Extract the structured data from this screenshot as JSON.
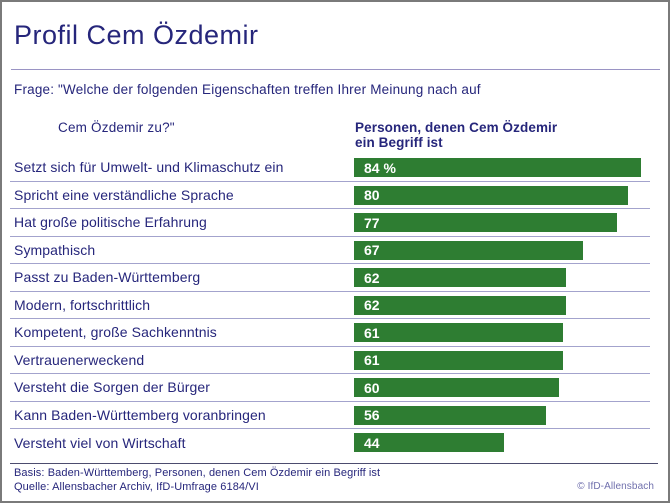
{
  "page": {
    "title": "Profil Cem Özdemir"
  },
  "question": {
    "prefix": "Frage:",
    "line1": "\"Welche der folgenden Eigenschaften treffen Ihrer Meinung nach auf",
    "line2": "Cem Özdemir zu?\""
  },
  "chart_data": {
    "type": "bar",
    "orientation": "horizontal",
    "title": "Profil Cem Özdemir",
    "column_header": "Personen, denen Cem Özdemir ein Begriff ist",
    "column_header_lines": [
      "Personen, denen Cem Özdemir",
      "ein Begriff ist"
    ],
    "categories": [
      "Setzt sich für Umwelt- und Klimaschutz ein",
      "Spricht eine verständliche Sprache",
      "Hat große politische Erfahrung",
      "Sympathisch",
      "Passt zu Baden-Württemberg",
      "Modern, fortschrittlich",
      "Kompetent, große Sachkenntnis",
      "Vertrauenerweckend",
      "Versteht die Sorgen der Bürger",
      "Kann Baden-Württemberg voranbringen",
      "Versteht viel von Wirtschaft"
    ],
    "values": [
      84,
      80,
      77,
      67,
      62,
      62,
      61,
      61,
      60,
      56,
      44
    ],
    "value_labels": [
      "84 %",
      "80",
      "77",
      "67",
      "62",
      "62",
      "61",
      "61",
      "60",
      "56",
      "44"
    ],
    "unit": "%",
    "xlim": [
      0,
      100
    ],
    "grid": false,
    "legend": "none",
    "bar_color": "#2e7d32"
  },
  "footer": {
    "basis": "Basis: Baden-Württemberg, Personen, denen Cem Özdemir ein Begriff ist",
    "quelle": "Quelle: Allensbacher Archiv, IfD-Umfrage 6184/VI",
    "copyright": "© IfD-Allensbach"
  },
  "colors": {
    "text_navy": "#26267b",
    "bar_green": "#2e7d32",
    "row_separator": "#a3a3cd",
    "title_divider": "#9a94c4",
    "footer_divider": "#4c4c6e",
    "copyright_purple": "#7070ad",
    "frame_gray": "#7a7a7a"
  }
}
